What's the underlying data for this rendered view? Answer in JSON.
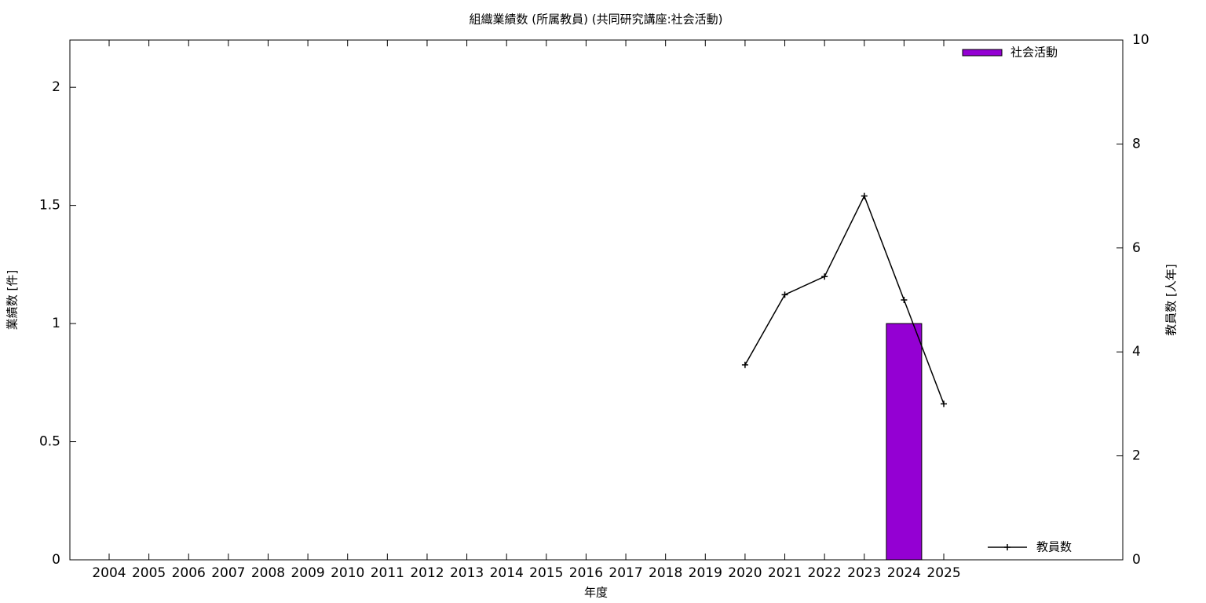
{
  "chart_data": {
    "type": "bar_line",
    "title": "組織業績数 (所属教員) (共同研究講座:社会活動)",
    "x_label": "年度",
    "y_label": "業績数 [件]",
    "y2_label": "教員数 [人年]",
    "categories": [
      "2004",
      "2005",
      "2006",
      "2007",
      "2008",
      "2009",
      "2010",
      "2011",
      "2012",
      "2013",
      "2014",
      "2015",
      "2016",
      "2017",
      "2018",
      "2019",
      "2020",
      "2021",
      "2022",
      "2023",
      "2024",
      "2025"
    ],
    "series": [
      {
        "name": "社会活動",
        "type": "bar",
        "color": "#9400d3",
        "values": [
          0,
          0,
          0,
          0,
          0,
          0,
          0,
          0,
          0,
          0,
          0,
          0,
          0,
          0,
          0,
          0,
          0,
          0,
          0,
          0,
          1,
          0
        ]
      },
      {
        "name": "教員数",
        "type": "line",
        "axis": "y2",
        "color": "#000000",
        "values": [
          null,
          null,
          null,
          null,
          null,
          null,
          null,
          null,
          null,
          null,
          null,
          null,
          null,
          null,
          null,
          null,
          3.75,
          5.1,
          5.45,
          7,
          5,
          3
        ]
      }
    ],
    "ylim": [
      0,
      2.2
    ],
    "yticks": [
      0,
      0.5,
      1,
      1.5,
      2
    ],
    "y2lim": [
      0,
      10
    ],
    "y2ticks": [
      0,
      2,
      4,
      6,
      8,
      10
    ],
    "grid": false
  }
}
